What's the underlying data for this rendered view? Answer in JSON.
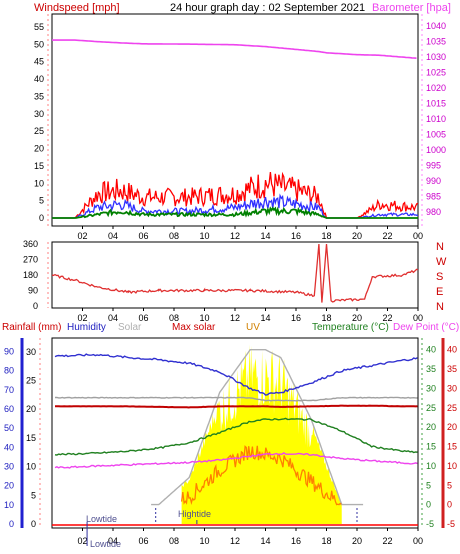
{
  "header": {
    "windspeed_label": "Windspeed [mph]",
    "title": "24 hour graph day : 02 September 2021",
    "barometer_label": "Barometer [hpa]"
  },
  "panel3_labels": {
    "rainfall": "Rainfall (mm)",
    "humidity": "Humidity",
    "solar": "Solar",
    "max_solar": "Max solar",
    "uv": "UV",
    "temperature": "Temperature (°C)",
    "dew_point": "Dew Point (°C)"
  },
  "tide_labels": {
    "lowtide": "Lowtide",
    "hightide": "Hightide",
    "bottom_lowtide": "Lowtide"
  },
  "colors": {
    "wind_gust": "#ff0000",
    "wind_avg": "#3030ff",
    "wind_low": "#008000",
    "barometer": "#ee44ee",
    "direction": "#e03030",
    "humidity": "#3030d0",
    "solar": "#a0a0a0",
    "max_solar": "#c00000",
    "temperature": "#208020",
    "dew_point": "#ee44ee",
    "uv_fill": "#ffff00",
    "uv_line": "#ff8000",
    "rain": "#ff0000"
  },
  "chart_data": [
    {
      "type": "line",
      "title": "24 hour graph day : 02 September 2021",
      "x_ticks": [
        "02",
        "04",
        "06",
        "08",
        "10",
        "12",
        "14",
        "16",
        "18",
        "20",
        "22",
        "00"
      ],
      "y_left": {
        "label": "Windspeed [mph]",
        "ticks": [
          "0",
          "5",
          "10",
          "15",
          "20",
          "25",
          "30",
          "35",
          "40",
          "45",
          "50",
          "55"
        ],
        "range": [
          0,
          57
        ]
      },
      "y_right": {
        "label": "Barometer [hpa]",
        "ticks": [
          "980",
          "985",
          "990",
          "995",
          "1000",
          "1005",
          "1010",
          "1015",
          "1020",
          "1025",
          "1030",
          "1035",
          "1040"
        ],
        "range": [
          978,
          1042
        ]
      },
      "x": [
        1.5,
        3.0,
        4.5,
        6.0,
        9.0,
        12.0,
        14.0,
        16.0,
        17.5,
        18.0,
        20.0,
        21.5,
        24.0
      ],
      "series": [
        {
          "name": "gust",
          "values": [
            0,
            7,
            8,
            6,
            6,
            7,
            10,
            8,
            6,
            0,
            0,
            4,
            3
          ]
        },
        {
          "name": "average",
          "values": [
            0,
            3,
            4,
            2,
            2,
            3,
            5,
            4,
            3,
            0,
            0,
            1,
            1
          ]
        },
        {
          "name": "low",
          "values": [
            0,
            1,
            2,
            1,
            1,
            1,
            2,
            2,
            1,
            0,
            0,
            0,
            0
          ]
        },
        {
          "name": "barometer",
          "values": [
            1035.5,
            1035.0,
            1034.6,
            1034.3,
            1034.2,
            1034.0,
            1033.4,
            1032.5,
            1031.8,
            1031.4,
            1030.8,
            1030.6,
            1029.6
          ]
        }
      ]
    },
    {
      "type": "line",
      "x_ticks": [
        "02",
        "04",
        "06",
        "08",
        "10",
        "12",
        "14",
        "16",
        "18",
        "20",
        "22",
        "00"
      ],
      "y_left": {
        "ticks": [
          "0",
          "90",
          "180",
          "270",
          "360"
        ],
        "range": [
          0,
          360
        ]
      },
      "y_right": {
        "ticks": [
          "N",
          "W",
          "S",
          "E",
          "N"
        ]
      },
      "x": [
        0,
        1.5,
        3.0,
        5.0,
        7.0,
        10.0,
        13.0,
        16.0,
        17.2,
        17.5,
        17.7,
        18.0,
        18.3,
        20.5,
        21.0,
        23.0,
        24.0
      ],
      "series": [
        {
          "name": "direction",
          "values": [
            180,
            150,
            110,
            80,
            90,
            90,
            90,
            80,
            60,
            360,
            20,
            360,
            30,
            40,
            170,
            180,
            210
          ]
        }
      ]
    },
    {
      "type": "line",
      "x_ticks": [
        "02",
        "04",
        "06",
        "08",
        "10",
        "12",
        "14",
        "16",
        "18",
        "20",
        "22",
        "00"
      ],
      "axes": {
        "rainfall": {
          "label": "Rainfall (mm)",
          "ticks": [
            "0",
            "10",
            "20",
            "30",
            "40",
            "50",
            "60",
            "70",
            "80",
            "90"
          ],
          "range": [
            0,
            95
          ]
        },
        "humidity": {
          "label": "Humidity",
          "ticks": [
            "0",
            "5",
            "10",
            "15",
            "20",
            "25",
            "30"
          ],
          "range": [
            0,
            31.7
          ]
        },
        "temperature": {
          "label": "Temperature (°C)",
          "ticks": [
            "-5",
            "0",
            "5",
            "10",
            "15",
            "20",
            "25",
            "30",
            "35",
            "40"
          ],
          "range": [
            -5,
            42
          ]
        },
        "dew_point": {
          "label": "Dew Point (°C)",
          "ticks": [
            "-5",
            "0",
            "5",
            "10",
            "15",
            "20",
            "25",
            "30",
            "35",
            "40"
          ],
          "range": [
            -5,
            42
          ]
        }
      },
      "x": [
        1.0,
        3.0,
        5.0,
        7.0,
        9.0,
        11.0,
        13.0,
        14.0,
        15.0,
        17.0,
        19.0,
        21.0,
        23.0,
        24.0
      ],
      "series": [
        {
          "name": "humidity",
          "values": [
            29.3,
            29.5,
            29.0,
            28.6,
            28.0,
            26.5,
            23.6,
            22.6,
            22.9,
            24.6,
            26.7,
            27.6,
            28.5,
            28.9
          ]
        },
        {
          "name": "solar",
          "values": [
            22.0,
            22.0,
            22.0,
            22.0,
            22.0,
            22.0,
            22.0,
            21.5,
            21.5,
            21.5,
            22.0,
            22.0,
            22.0,
            22.0
          ]
        },
        {
          "name": "max_solar",
          "values": [
            20.5,
            20.5,
            20.5,
            20.4,
            20.3,
            20.5,
            20.5,
            20.5,
            20.4,
            20.5,
            20.6,
            20.6,
            20.5,
            20.5
          ]
        },
        {
          "name": "temperature",
          "values": [
            13.0,
            13.3,
            13.8,
            14.6,
            16.0,
            18.6,
            21.5,
            22.0,
            22.1,
            22.0,
            19.0,
            15.0,
            13.8,
            13.5
          ]
        },
        {
          "name": "dew_point",
          "values": [
            9.6,
            10.0,
            10.3,
            10.6,
            10.9,
            11.5,
            12.5,
            13.0,
            13.2,
            12.9,
            11.9,
            11.3,
            10.8,
            10.6
          ]
        },
        {
          "name": "max_solar_curve",
          "values": [
            0,
            0,
            0,
            0,
            7,
            29,
            40,
            40,
            38,
            22,
            0,
            0,
            0,
            0
          ]
        },
        {
          "name": "uv",
          "values": [
            0,
            0,
            0,
            0,
            2,
            9,
            14,
            13,
            12,
            6,
            0,
            0,
            0,
            0
          ]
        }
      ]
    }
  ]
}
